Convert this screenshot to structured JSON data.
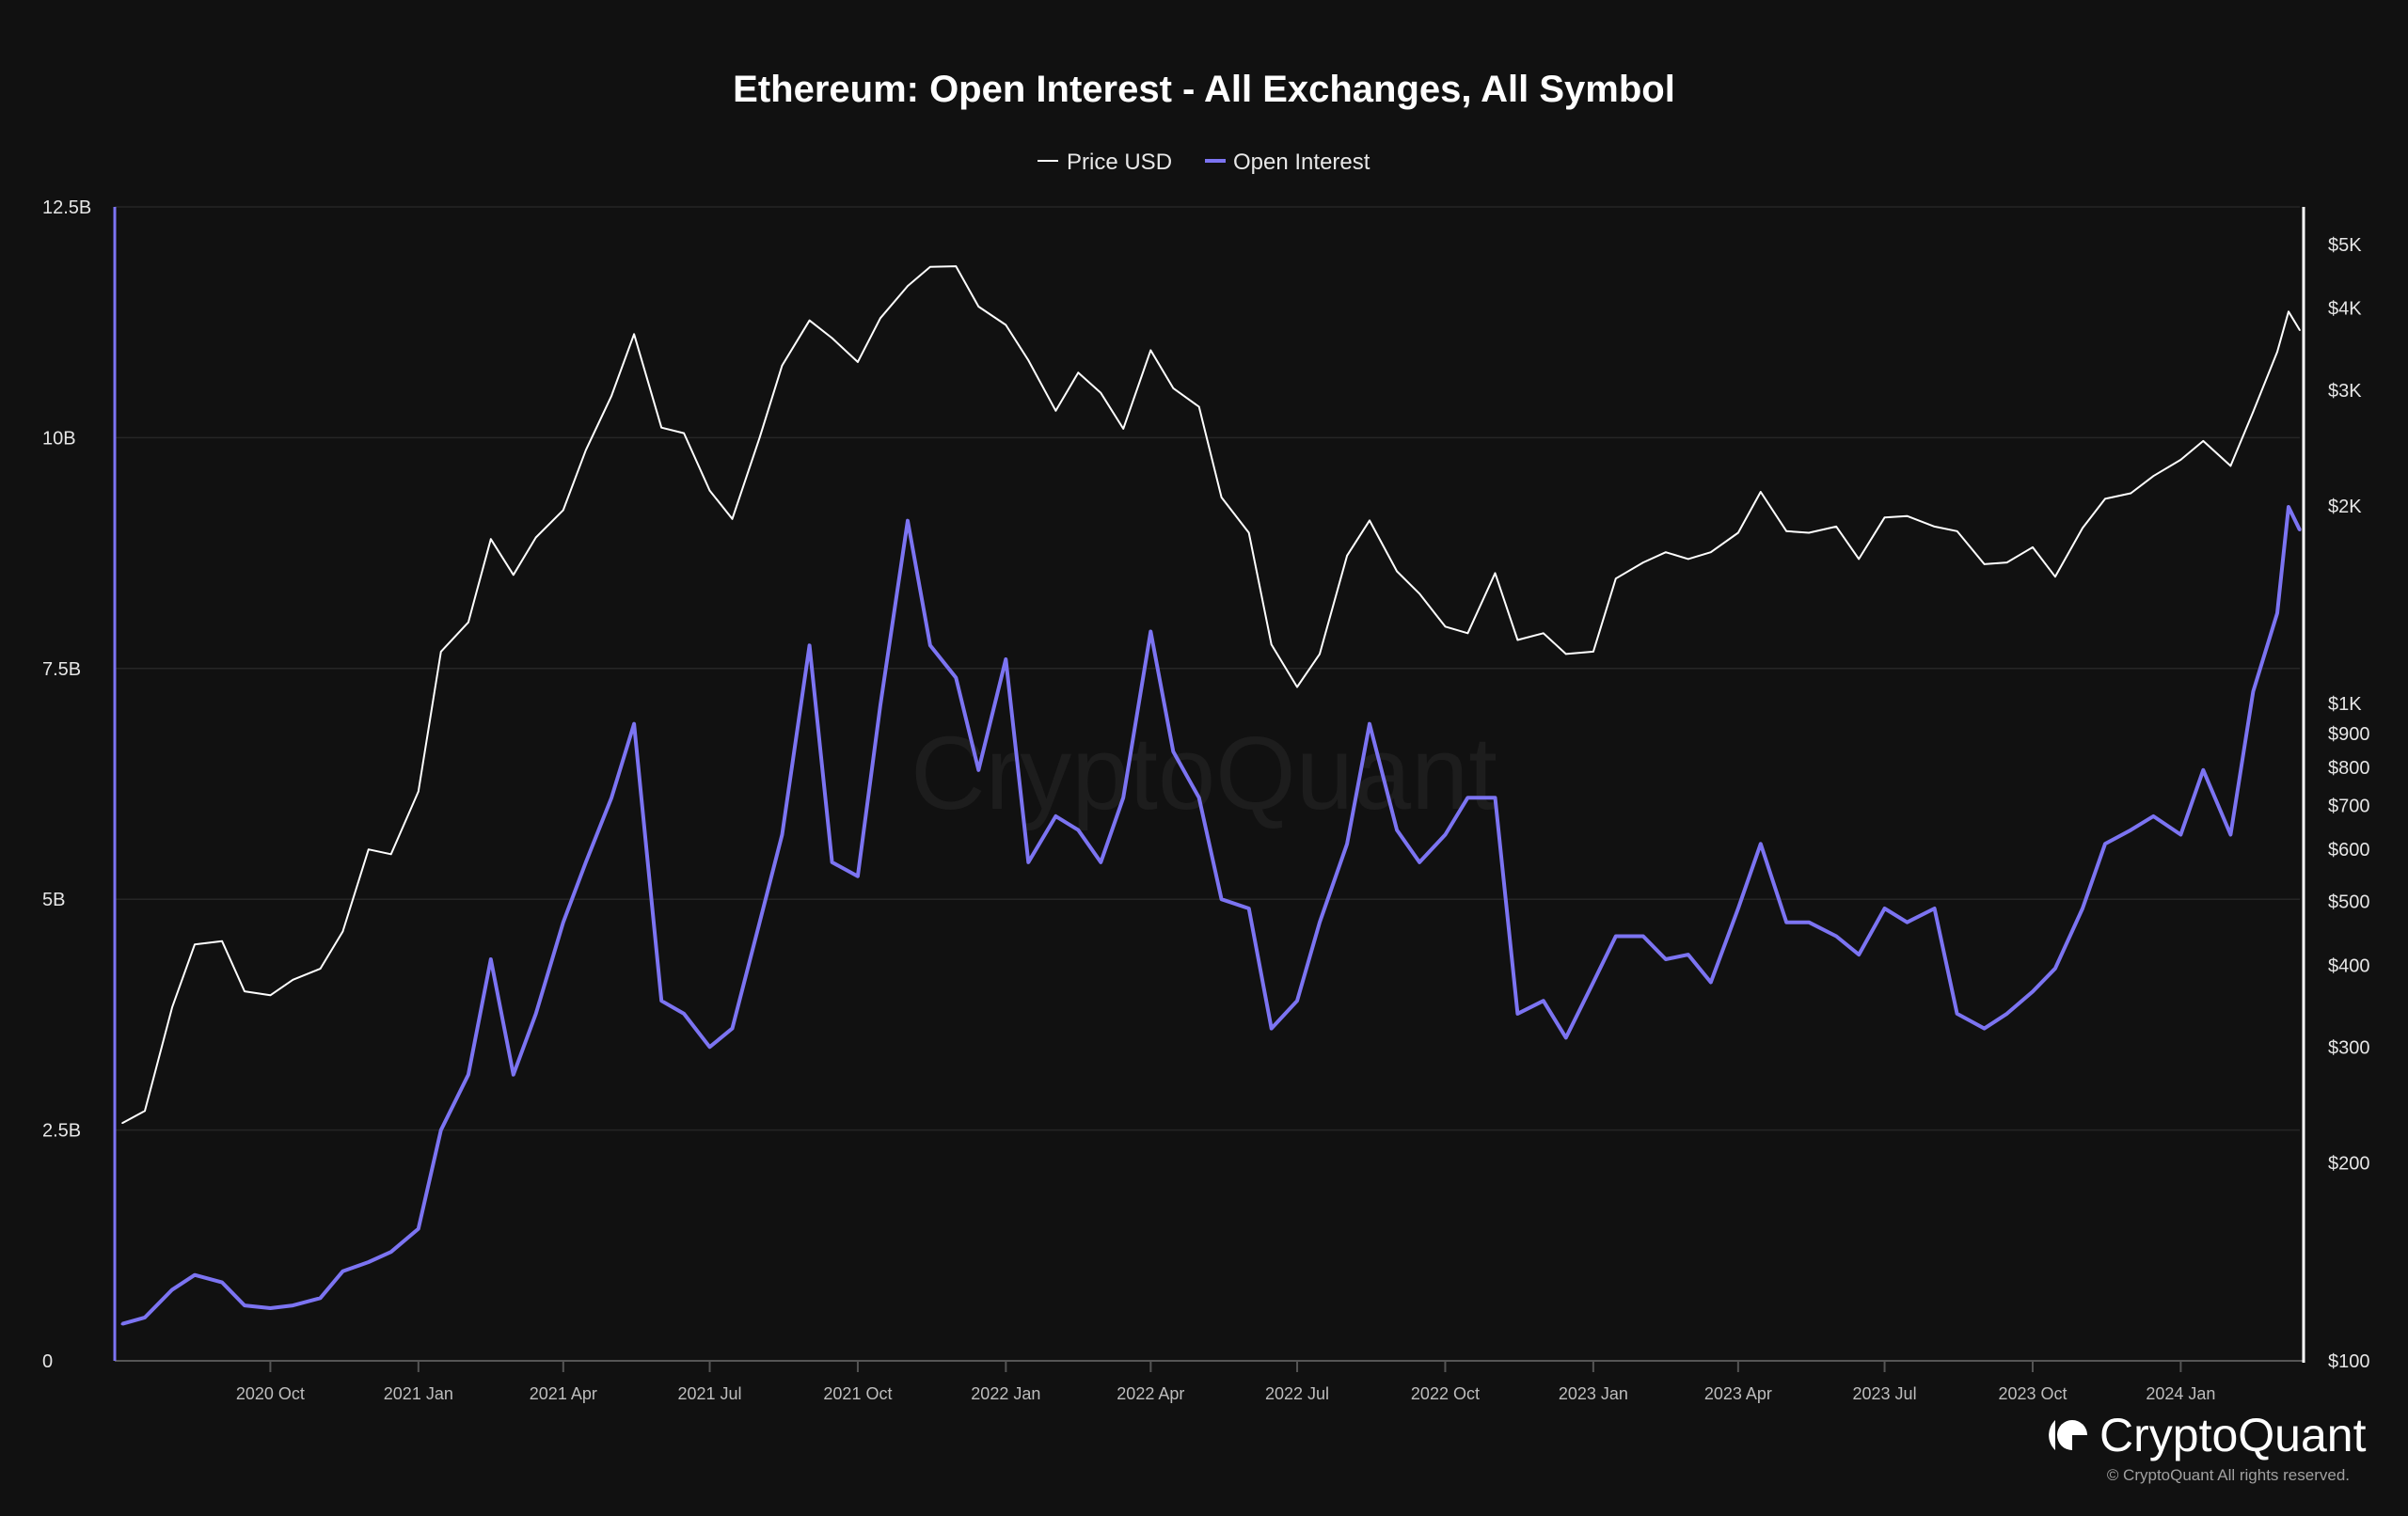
{
  "chart_data": {
    "type": "line",
    "title": "Ethereum: Open Interest - All Exchanges, All Symbol",
    "legend": [
      "Price USD",
      "Open Interest"
    ],
    "legend_position": "top-center",
    "colors": {
      "price": "#ffffff",
      "open_interest": "#7c74f2",
      "background": "#111111"
    },
    "left_axis": {
      "label": "Open Interest",
      "scale": "linear",
      "range": [
        0,
        12500000000
      ],
      "ticks": [
        0,
        2500000000,
        5000000000,
        7500000000,
        10000000000,
        12500000000
      ],
      "tick_labels": [
        "0",
        "2.5B",
        "5B",
        "7.5B",
        "10B",
        "12.5B"
      ]
    },
    "right_axis": {
      "label": "Price USD",
      "scale": "log",
      "range": [
        100,
        5700
      ],
      "ticks": [
        100,
        200,
        300,
        400,
        500,
        600,
        700,
        800,
        900,
        1000,
        2000,
        3000,
        4000,
        5000
      ],
      "tick_labels": [
        "$100",
        "$200",
        "$300",
        "$400",
        "$500",
        "$600",
        "$700",
        "$800",
        "$900",
        "$1K",
        "$2K",
        "$3K",
        "$4K",
        "$5K"
      ]
    },
    "x_axis": {
      "range": [
        "2020-07-01",
        "2024-03-15"
      ],
      "ticks": [
        "2020-10-01",
        "2021-01-01",
        "2021-04-01",
        "2021-07-01",
        "2021-10-01",
        "2022-01-01",
        "2022-04-01",
        "2022-07-01",
        "2022-10-01",
        "2023-01-01",
        "2023-04-01",
        "2023-07-01",
        "2023-10-01",
        "2024-01-01"
      ],
      "tick_labels": [
        "2020 Oct",
        "2021 Jan",
        "2021 Apr",
        "2021 Jul",
        "2021 Oct",
        "2022 Jan",
        "2022 Apr",
        "2022 Jul",
        "2022 Oct",
        "2023 Jan",
        "2023 Apr",
        "2023 Jul",
        "2023 Oct",
        "2024 Jan"
      ]
    },
    "grid": true,
    "x": [
      "2020-07-01",
      "2020-07-15",
      "2020-08-01",
      "2020-08-15",
      "2020-09-01",
      "2020-09-15",
      "2020-10-01",
      "2020-10-15",
      "2020-11-01",
      "2020-11-15",
      "2020-12-01",
      "2020-12-15",
      "2021-01-01",
      "2021-01-15",
      "2021-02-01",
      "2021-02-15",
      "2021-03-01",
      "2021-03-15",
      "2021-04-01",
      "2021-04-15",
      "2021-05-01",
      "2021-05-15",
      "2021-06-01",
      "2021-06-15",
      "2021-07-01",
      "2021-07-15",
      "2021-08-01",
      "2021-08-15",
      "2021-09-01",
      "2021-09-15",
      "2021-10-01",
      "2021-10-15",
      "2021-11-01",
      "2021-11-15",
      "2021-12-01",
      "2021-12-15",
      "2022-01-01",
      "2022-01-15",
      "2022-02-01",
      "2022-02-15",
      "2022-03-01",
      "2022-03-15",
      "2022-04-01",
      "2022-04-15",
      "2022-05-01",
      "2022-05-15",
      "2022-06-01",
      "2022-06-15",
      "2022-07-01",
      "2022-07-15",
      "2022-08-01",
      "2022-08-15",
      "2022-09-01",
      "2022-09-15",
      "2022-10-01",
      "2022-10-15",
      "2022-11-01",
      "2022-11-15",
      "2022-12-01",
      "2022-12-15",
      "2023-01-01",
      "2023-01-15",
      "2023-02-01",
      "2023-02-15",
      "2023-03-01",
      "2023-03-15",
      "2023-04-01",
      "2023-04-15",
      "2023-05-01",
      "2023-05-15",
      "2023-06-01",
      "2023-06-15",
      "2023-07-01",
      "2023-07-15",
      "2023-08-01",
      "2023-08-15",
      "2023-09-01",
      "2023-09-15",
      "2023-10-01",
      "2023-10-15",
      "2023-11-01",
      "2023-11-15",
      "2023-12-01",
      "2023-12-15",
      "2024-01-01",
      "2024-01-15",
      "2024-02-01",
      "2024-02-15",
      "2024-03-01",
      "2024-03-08",
      "2024-03-15"
    ],
    "series": [
      {
        "name": "Price USD",
        "axis": "right",
        "values": [
          230,
          240,
          345,
          430,
          435,
          365,
          360,
          380,
          395,
          450,
          600,
          590,
          735,
          1200,
          1330,
          1780,
          1570,
          1790,
          1970,
          2430,
          2940,
          3650,
          2630,
          2580,
          2110,
          1910,
          2540,
          3270,
          3830,
          3600,
          3310,
          3860,
          4320,
          4620,
          4630,
          4020,
          3770,
          3330,
          2790,
          3190,
          2970,
          2620,
          3450,
          3020,
          2830,
          2060,
          1820,
          1230,
          1060,
          1190,
          1680,
          1900,
          1590,
          1470,
          1310,
          1280,
          1580,
          1250,
          1280,
          1190,
          1200,
          1550,
          1640,
          1700,
          1660,
          1700,
          1820,
          2100,
          1830,
          1820,
          1860,
          1660,
          1920,
          1930,
          1860,
          1830,
          1630,
          1640,
          1730,
          1560,
          1850,
          2050,
          2090,
          2220,
          2350,
          2510,
          2300,
          2780,
          3430,
          3950,
          3700
        ]
      },
      {
        "name": "Open Interest",
        "axis": "left",
        "values": [
          0.4,
          0.47,
          0.77,
          0.93,
          0.85,
          0.6,
          0.57,
          0.6,
          0.68,
          0.97,
          1.07,
          1.18,
          1.43,
          2.5,
          3.1,
          4.35,
          3.1,
          3.76,
          4.75,
          5.4,
          6.1,
          6.9,
          3.9,
          3.76,
          3.4,
          3.6,
          4.75,
          5.7,
          7.75,
          5.4,
          5.25,
          7.1,
          9.1,
          7.75,
          7.4,
          6.4,
          7.6,
          5.4,
          5.9,
          5.75,
          5.4,
          6.1,
          7.9,
          6.6,
          6.1,
          5.0,
          4.9,
          3.6,
          3.9,
          4.75,
          5.6,
          6.9,
          5.75,
          5.4,
          5.7,
          6.1,
          6.1,
          3.76,
          3.9,
          3.5,
          4.1,
          4.6,
          4.6,
          4.35,
          4.4,
          4.1,
          4.9,
          5.6,
          4.75,
          4.75,
          4.6,
          4.4,
          4.9,
          4.75,
          4.9,
          3.76,
          3.6,
          3.76,
          4.0,
          4.25,
          4.9,
          5.6,
          5.75,
          5.9,
          5.7,
          6.4,
          5.7,
          7.25,
          8.1,
          9.25,
          9.0
        ],
        "unit": "billions USD"
      }
    ]
  },
  "branding": {
    "watermark": "CryptoQuant",
    "logo_text": "CryptoQuant",
    "copyright": "© CryptoQuant All rights reserved."
  }
}
